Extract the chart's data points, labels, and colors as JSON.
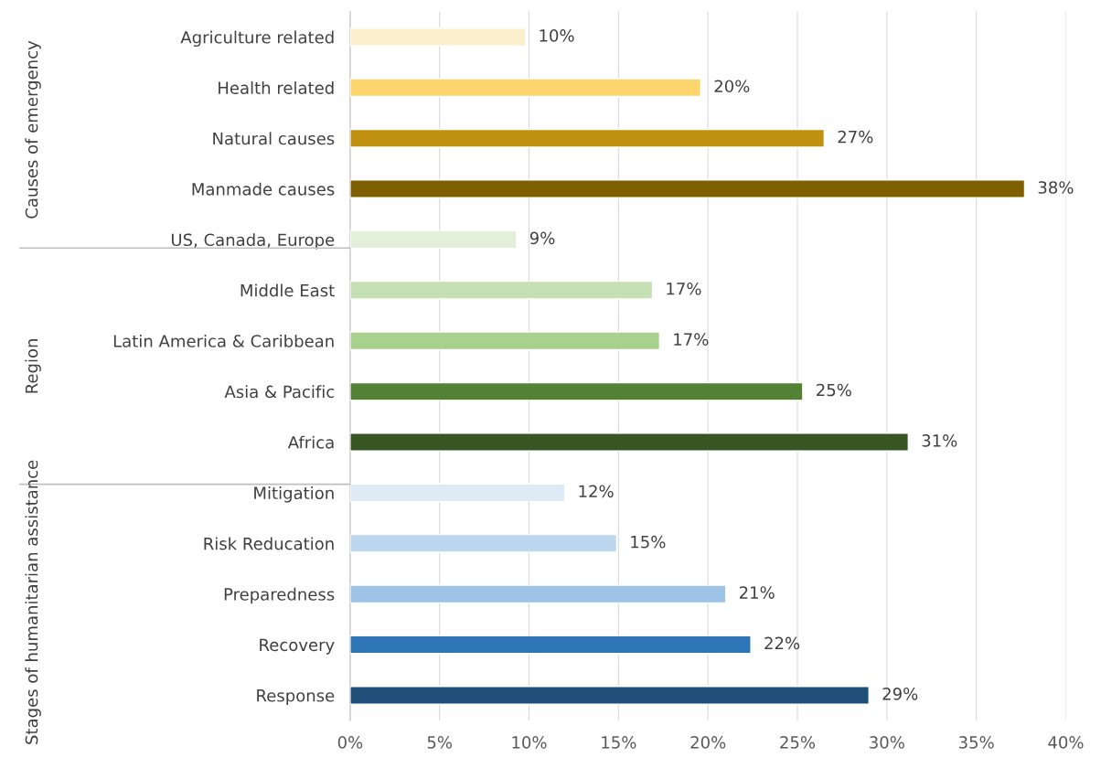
{
  "chart_data": {
    "type": "bar",
    "orientation": "horizontal",
    "categories": [
      "Agriculture related",
      "Health related",
      "Natural causes",
      "Manmade causes",
      "US, Canada, Europe",
      "Middle East",
      "Latin America & Caribbean",
      "Asia & Pacific",
      "Africa",
      "Mitigation",
      "Risk Reducation",
      "Preparedness",
      "Recovery",
      "Response"
    ],
    "values": [
      9.8,
      19.6,
      26.5,
      37.7,
      9.3,
      16.9,
      17.3,
      25.3,
      31.2,
      12.0,
      14.9,
      21.0,
      22.4,
      29.0
    ],
    "value_labels": [
      "10%",
      "20%",
      "27%",
      "38%",
      "9%",
      "17%",
      "17%",
      "25%",
      "31%",
      "12%",
      "15%",
      "21%",
      "22%",
      "29%"
    ],
    "colors": [
      "#fbeecb",
      "#fdd56c",
      "#c09010",
      "#7f6000",
      "#e2f0d9",
      "#c5e0b4",
      "#a9d18e",
      "#548235",
      "#375623",
      "#deebf7",
      "#bdd7ee",
      "#9dc3e6",
      "#2e75b6",
      "#1f4e79"
    ],
    "xlim": [
      0,
      40
    ],
    "xticks": [
      {
        "value": 0,
        "label": "0%"
      },
      {
        "value": 5,
        "label": "5%"
      },
      {
        "value": 10,
        "label": "10%"
      },
      {
        "value": 15,
        "label": "15%"
      },
      {
        "value": 20,
        "label": "20%"
      },
      {
        "value": 25,
        "label": "25%"
      },
      {
        "value": 30,
        "label": "30%"
      },
      {
        "value": 35,
        "label": "35%"
      },
      {
        "value": 40,
        "label": "40%"
      }
    ],
    "grid": "x",
    "legend": false,
    "annotations": [
      "Causes of emergency",
      "Region",
      "Stages of humanitarian assistance"
    ]
  }
}
